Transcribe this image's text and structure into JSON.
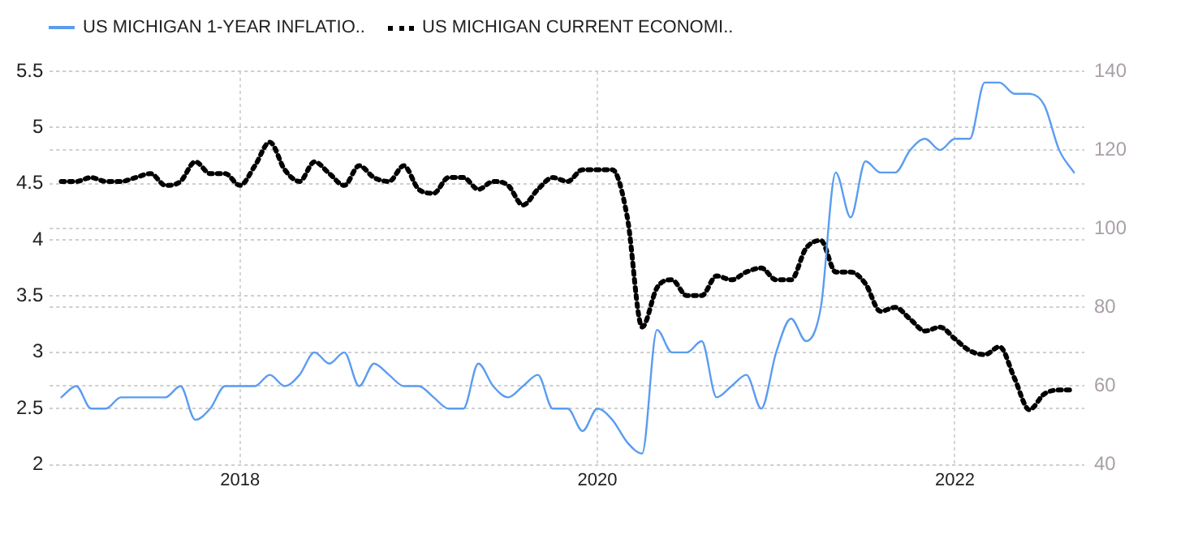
{
  "chart_data": {
    "type": "line",
    "legend": "top left",
    "grid": true,
    "marker": "none",
    "x": [
      "2017-01",
      "2017-02",
      "2017-03",
      "2017-04",
      "2017-05",
      "2017-06",
      "2017-07",
      "2017-08",
      "2017-09",
      "2017-10",
      "2017-11",
      "2017-12",
      "2018-01",
      "2018-02",
      "2018-03",
      "2018-04",
      "2018-05",
      "2018-06",
      "2018-07",
      "2018-08",
      "2018-09",
      "2018-10",
      "2018-11",
      "2018-12",
      "2019-01",
      "2019-02",
      "2019-03",
      "2019-04",
      "2019-05",
      "2019-06",
      "2019-07",
      "2019-08",
      "2019-09",
      "2019-10",
      "2019-11",
      "2019-12",
      "2020-01",
      "2020-02",
      "2020-03",
      "2020-04",
      "2020-05",
      "2020-06",
      "2020-07",
      "2020-08",
      "2020-09",
      "2020-10",
      "2020-11",
      "2020-12",
      "2021-01",
      "2021-02",
      "2021-03",
      "2021-04",
      "2021-05",
      "2021-06",
      "2021-07",
      "2021-08",
      "2021-09",
      "2021-10",
      "2021-11",
      "2021-12",
      "2022-01",
      "2022-02",
      "2022-03",
      "2022-04",
      "2022-05",
      "2022-06",
      "2022-07",
      "2022-08",
      "2022-09"
    ],
    "xlim": [
      "2016-12-08",
      "2022-09-22"
    ],
    "xticks": [
      "2018",
      "2020",
      "2022"
    ],
    "ylim": [
      2,
      5.5
    ],
    "yticks": [
      2,
      2.5,
      3,
      3.5,
      4,
      4.5,
      5,
      5.5
    ],
    "y2lim": [
      40,
      140
    ],
    "y2ticks": [
      40,
      60,
      80,
      100,
      120,
      140
    ],
    "series": [
      {
        "name": "US MICHIGAN 1-YEAR INFLATIO..",
        "color": "#5b9cf0",
        "line_style": "solid",
        "values": [
          2.6,
          2.7,
          2.5,
          2.5,
          2.6,
          2.6,
          2.6,
          2.6,
          2.7,
          2.4,
          2.5,
          2.7,
          2.7,
          2.7,
          2.8,
          2.7,
          2.8,
          3.0,
          2.9,
          3.0,
          2.7,
          2.9,
          2.8,
          2.7,
          2.7,
          2.6,
          2.5,
          2.5,
          2.9,
          2.7,
          2.6,
          2.7,
          2.8,
          2.5,
          2.5,
          2.3,
          2.5,
          2.4,
          2.2,
          2.1,
          3.2,
          3.0,
          3.0,
          3.1,
          2.6,
          2.7,
          2.8,
          2.5,
          3.0,
          3.3,
          3.1,
          3.4,
          4.6,
          4.2,
          4.7,
          4.6,
          4.6,
          4.8,
          4.9,
          4.8,
          4.9,
          4.9,
          5.4,
          5.4,
          5.3,
          5.3,
          5.2,
          4.8,
          4.6
        ]
      },
      {
        "name": "US MICHIGAN CURRENT ECONOMI..",
        "color": "#000000",
        "line_style": "dotted",
        "axis": "y2",
        "values": [
          112,
          112,
          113,
          112,
          112,
          113,
          114,
          111,
          112,
          117,
          114,
          114,
          111,
          116,
          122,
          115,
          112,
          117,
          114,
          111,
          116,
          113,
          112,
          116,
          110,
          109,
          113,
          113,
          110,
          112,
          111,
          106,
          110,
          113,
          112,
          115,
          115,
          115,
          103,
          75,
          85,
          87,
          83,
          83,
          88,
          87,
          89,
          90,
          87,
          87,
          95,
          97,
          89,
          89,
          86,
          79,
          80,
          77,
          74,
          75,
          72,
          69,
          68,
          70,
          62,
          54,
          58,
          59,
          59
        ]
      }
    ]
  }
}
